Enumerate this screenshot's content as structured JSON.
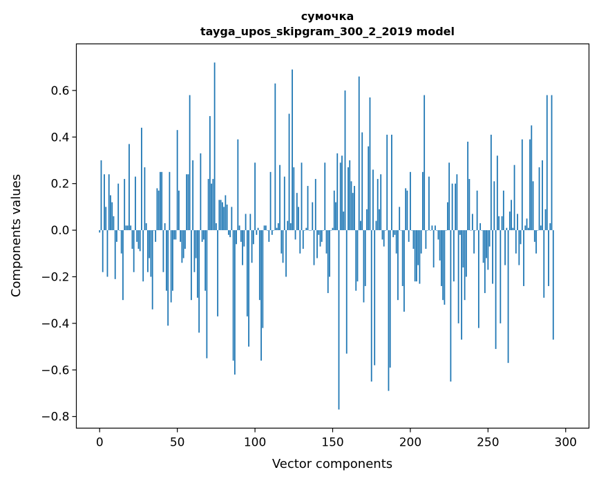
{
  "chart_data": {
    "type": "bar",
    "title": "сумочка",
    "subtitle": "tayga_upos_skipgram_300_2_2019 model",
    "xlabel": "Vector components",
    "ylabel": "Components values",
    "xlim": [
      -15,
      315
    ],
    "ylim": [
      -0.85,
      0.8
    ],
    "xticks": [
      0,
      50,
      100,
      150,
      200,
      250,
      300
    ],
    "xtick_labels": [
      "0",
      "50",
      "100",
      "150",
      "200",
      "250",
      "300"
    ],
    "yticks": [
      -0.8,
      -0.6,
      -0.4,
      -0.2,
      0.0,
      0.2,
      0.4,
      0.6
    ],
    "ytick_labels": [
      "−0.8",
      "−0.6",
      "−0.4",
      "−0.2",
      "0.0",
      "0.2",
      "0.4",
      "0.6"
    ],
    "bar_color": "#1f77b4",
    "values": [
      -0.01,
      0.3,
      -0.18,
      0.24,
      0.1,
      -0.2,
      0.24,
      0.15,
      0.12,
      0.06,
      -0.21,
      -0.05,
      0.2,
      0.0,
      -0.1,
      -0.3,
      0.22,
      0.02,
      0.02,
      0.37,
      0.02,
      -0.08,
      -0.18,
      0.23,
      -0.05,
      -0.08,
      -0.09,
      0.44,
      -0.22,
      0.27,
      0.03,
      -0.18,
      -0.12,
      -0.2,
      -0.34,
      0.0,
      -0.05,
      0.18,
      0.17,
      0.25,
      0.25,
      -0.18,
      0.03,
      -0.26,
      -0.41,
      0.25,
      -0.31,
      -0.26,
      -0.04,
      -0.04,
      0.43,
      0.17,
      -0.05,
      -0.14,
      -0.12,
      -0.08,
      0.24,
      0.24,
      0.58,
      -0.3,
      0.3,
      -0.18,
      -0.12,
      -0.29,
      -0.44,
      0.33,
      -0.05,
      -0.04,
      -0.26,
      -0.55,
      0.22,
      0.49,
      0.2,
      0.22,
      0.72,
      0.03,
      -0.37,
      0.13,
      0.13,
      0.12,
      0.1,
      0.15,
      0.11,
      -0.02,
      -0.03,
      0.1,
      -0.56,
      -0.62,
      -0.06,
      0.39,
      0.02,
      -0.05,
      -0.15,
      -0.07,
      0.07,
      -0.37,
      -0.5,
      0.07,
      -0.14,
      -0.06,
      0.29,
      -0.02,
      0.01,
      -0.3,
      -0.56,
      -0.42,
      0.02,
      0.02,
      0.0,
      -0.05,
      0.25,
      -0.02,
      0.0,
      0.63,
      0.01,
      0.03,
      0.28,
      -0.1,
      -0.14,
      0.23,
      -0.2,
      0.04,
      0.5,
      0.03,
      0.69,
      0.27,
      -0.04,
      0.16,
      0.1,
      -0.1,
      0.29,
      -0.08,
      0.0,
      0.01,
      0.19,
      0.0,
      0.0,
      0.12,
      -0.15,
      0.22,
      -0.12,
      -0.02,
      -0.07,
      -0.05,
      0.0,
      0.29,
      -0.1,
      -0.27,
      -0.2,
      0.0,
      0.01,
      0.17,
      0.12,
      0.33,
      -0.77,
      0.29,
      0.32,
      0.08,
      0.6,
      -0.53,
      0.27,
      0.3,
      0.21,
      0.16,
      0.19,
      -0.26,
      -0.22,
      0.66,
      0.04,
      0.42,
      -0.31,
      -0.24,
      0.09,
      0.36,
      0.57,
      -0.65,
      0.26,
      -0.58,
      0.04,
      0.22,
      0.09,
      0.24,
      -0.04,
      -0.07,
      0.0,
      0.41,
      -0.69,
      -0.59,
      0.41,
      -0.03,
      -0.02,
      -0.1,
      -0.3,
      0.1,
      0.0,
      -0.24,
      -0.35,
      0.18,
      0.17,
      -0.05,
      0.25,
      0.0,
      -0.08,
      -0.22,
      -0.22,
      -0.15,
      -0.23,
      -0.1,
      0.25,
      0.58,
      -0.08,
      0.0,
      0.23,
      0.0,
      0.02,
      -0.16,
      0.02,
      0.0,
      -0.04,
      -0.13,
      -0.24,
      -0.3,
      -0.32,
      0.0,
      0.12,
      0.29,
      -0.65,
      0.2,
      -0.22,
      0.2,
      0.24,
      -0.4,
      -0.02,
      -0.47,
      -0.16,
      -0.3,
      -0.2,
      0.38,
      0.22,
      0.0,
      0.07,
      -0.1,
      0.0,
      0.17,
      -0.42,
      0.03,
      0.0,
      -0.14,
      -0.27,
      -0.12,
      -0.17,
      -0.07,
      0.41,
      -0.23,
      0.21,
      -0.51,
      0.32,
      0.06,
      -0.4,
      0.06,
      0.17,
      -0.15,
      0.01,
      -0.57,
      0.08,
      0.13,
      0.01,
      0.28,
      -0.1,
      0.07,
      -0.15,
      -0.06,
      0.39,
      -0.24,
      0.02,
      0.05,
      0.01,
      0.39,
      0.45,
      0.21,
      -0.05,
      -0.1,
      0.0,
      0.27,
      0.02,
      0.3,
      -0.29,
      0.09,
      0.58,
      -0.24,
      0.03,
      0.58,
      -0.47
    ]
  }
}
